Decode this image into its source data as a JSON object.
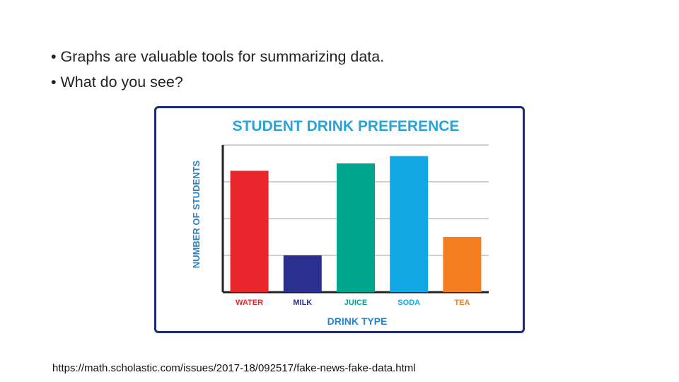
{
  "slide": {
    "bullets": [
      "• Graphs are valuable tools for summarizing data.",
      "• What do you see?"
    ],
    "source_url": "https://math.scholastic.com/issues/2017-18/092517/fake-news-fake-data.html"
  },
  "chart_data": {
    "type": "bar",
    "title": "STUDENT DRINK PREFERENCE",
    "xlabel": "DRINK TYPE",
    "ylabel": "NUMBER OF STUDENTS",
    "categories": [
      "WATER",
      "MILK",
      "JUICE",
      "SODA",
      "TEA"
    ],
    "values": [
      6.6,
      2.0,
      7.0,
      7.4,
      3.0
    ],
    "ylim": [
      0,
      8
    ],
    "yticks_labeled": false,
    "grid": true,
    "colors": [
      "#e8262b",
      "#2b2f8f",
      "#00a58e",
      "#12a8e6",
      "#f47d20"
    ],
    "title_color": "#2aa3dc",
    "axis_label_color": "#2a83c7",
    "frame_color": "#1f2a78"
  }
}
